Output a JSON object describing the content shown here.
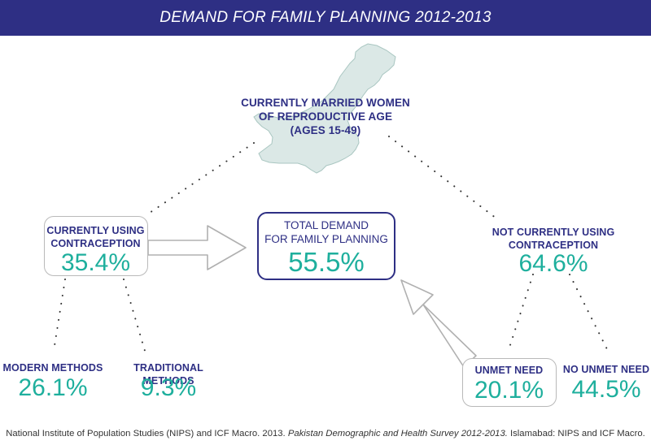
{
  "title": "DEMAND FOR FAMILY PLANNING 2012-2013",
  "colors": {
    "navy": "#2e2f84",
    "teal": "#1eaf9d",
    "map_fill": "#dbe8e6",
    "box_border": "#b9b9b9"
  },
  "top": {
    "label_line1": "CURRENTLY MARRIED WOMEN",
    "label_line2": "OF REPRODUCTIVE AGE",
    "label_line3": "(AGES 15-49)",
    "icon": "pakistan-map"
  },
  "using": {
    "label_line1": "CURRENTLY USING",
    "label_line2": "CONTRACEPTION",
    "value": "35.4%"
  },
  "total": {
    "label_line1": "TOTAL DEMAND",
    "label_line2": "FOR FAMILY PLANNING",
    "value": "55.5%"
  },
  "not_using": {
    "label_line1": "NOT CURRENTLY USING",
    "label_line2": "CONTRACEPTION",
    "value": "64.6%"
  },
  "modern": {
    "label": "MODERN METHODS",
    "value": "26.1%"
  },
  "traditional": {
    "label": "TRADITIONAL METHODS",
    "value": "9.3%"
  },
  "unmet": {
    "label": "UNMET NEED",
    "value": "20.1%"
  },
  "no_unmet": {
    "label": "NO UNMET NEED",
    "value": "44.5%"
  },
  "source": {
    "prefix": "National Institute of Population Studies (NIPS) and ICF Macro. 2013. ",
    "title": "Pakistan Demographic and Health Survey 2012-2013.",
    "suffix": " Islamabad: NIPS and ICF Macro."
  }
}
